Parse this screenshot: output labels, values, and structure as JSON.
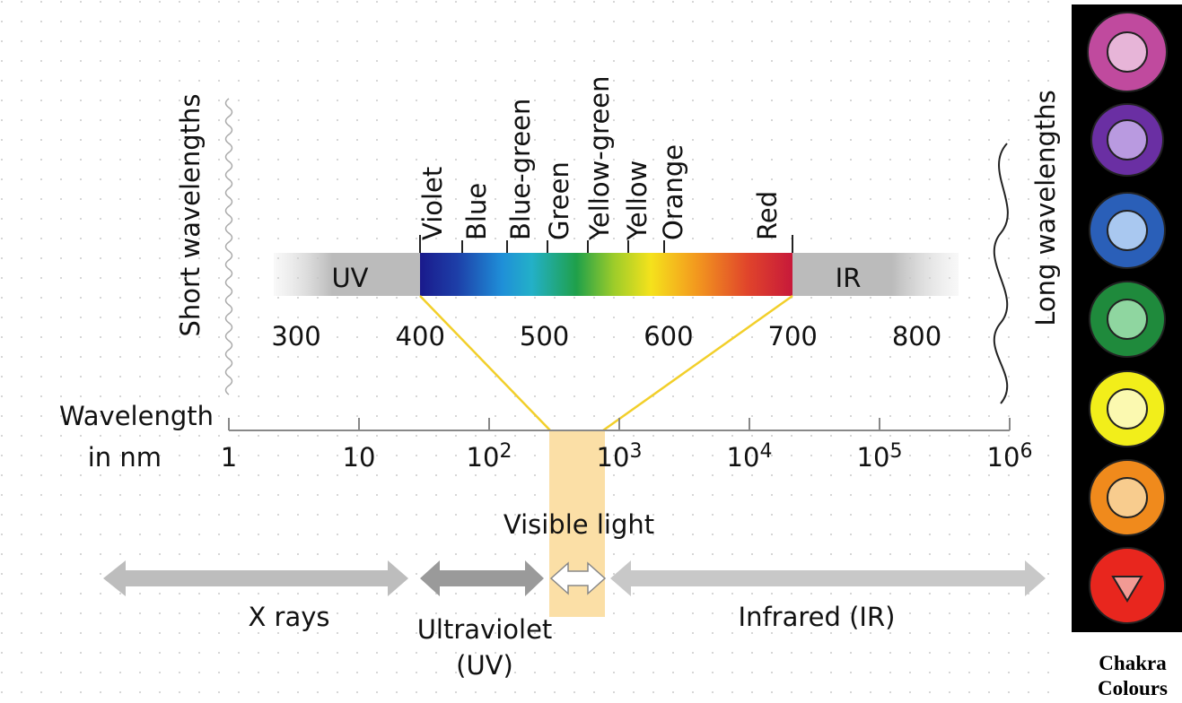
{
  "left_label": "Short wavelengths",
  "right_label": "Long wavelengths",
  "colors": [
    "Violet",
    "Blue",
    "Blue-green",
    "Green",
    "Yellow-green",
    "Yellow",
    "Orange",
    "Red"
  ],
  "bands": {
    "uv": "UV",
    "ir": "IR"
  },
  "nm_ticks": [
    "300",
    "400",
    "500",
    "600",
    "700",
    "800"
  ],
  "axis_label": {
    "line1": "Wavelength",
    "line2": "in nm"
  },
  "log_ticks": [
    {
      "base": "1"
    },
    {
      "base": "10"
    },
    {
      "base": "10",
      "exp": "2"
    },
    {
      "base": "10",
      "exp": "3"
    },
    {
      "base": "10",
      "exp": "4"
    },
    {
      "base": "10",
      "exp": "5"
    },
    {
      "base": "10",
      "exp": "6"
    }
  ],
  "visible_label": "Visible light",
  "regions": {
    "xrays": "X rays",
    "uv_line1": "Ultraviolet",
    "uv_line2": "(UV)",
    "ir": "Infrared (IR)"
  },
  "caption": {
    "line1": "Chakra",
    "line2": "Colours"
  }
}
